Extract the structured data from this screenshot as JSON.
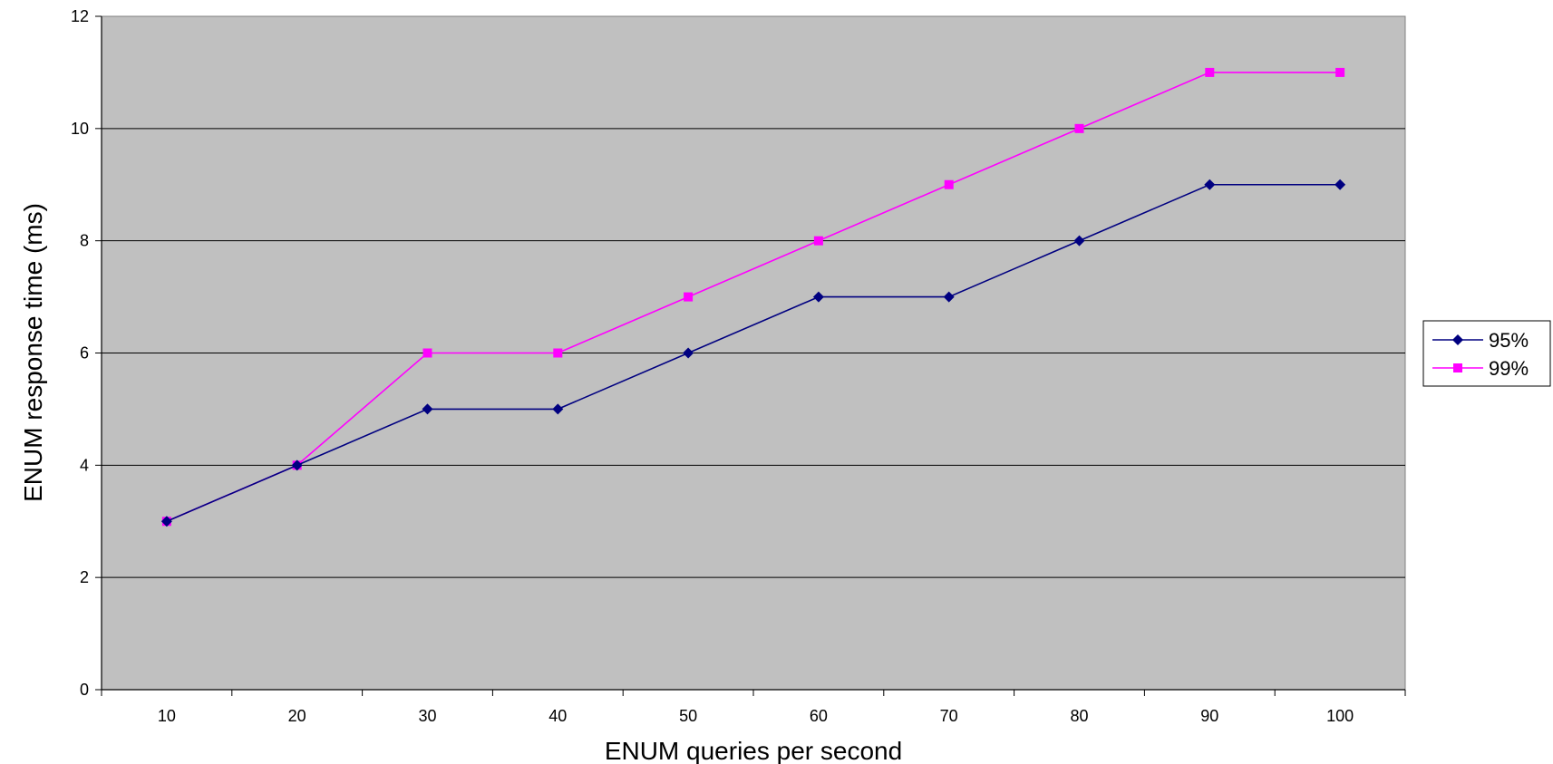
{
  "chart_data": {
    "type": "line",
    "title": "",
    "xlabel": "ENUM queries per second",
    "ylabel": "ENUM response time (ms)",
    "categories": [
      "10",
      "20",
      "30",
      "40",
      "50",
      "60",
      "70",
      "80",
      "90",
      "100"
    ],
    "y_ticks": [
      "0",
      "2",
      "4",
      "6",
      "8",
      "10",
      "12"
    ],
    "ylim": [
      0,
      12
    ],
    "grid": "horizontal",
    "legend_position": "right",
    "plot_background": "#c0c0c0",
    "series": [
      {
        "name": "95%",
        "values": [
          3,
          4,
          5,
          5,
          6,
          7,
          7,
          8,
          9,
          9
        ],
        "color": "#000080",
        "marker": "diamond"
      },
      {
        "name": "99%",
        "values": [
          3,
          4,
          6,
          6,
          7,
          8,
          9,
          10,
          11,
          11
        ],
        "color": "#ff00ff",
        "marker": "square"
      }
    ]
  }
}
